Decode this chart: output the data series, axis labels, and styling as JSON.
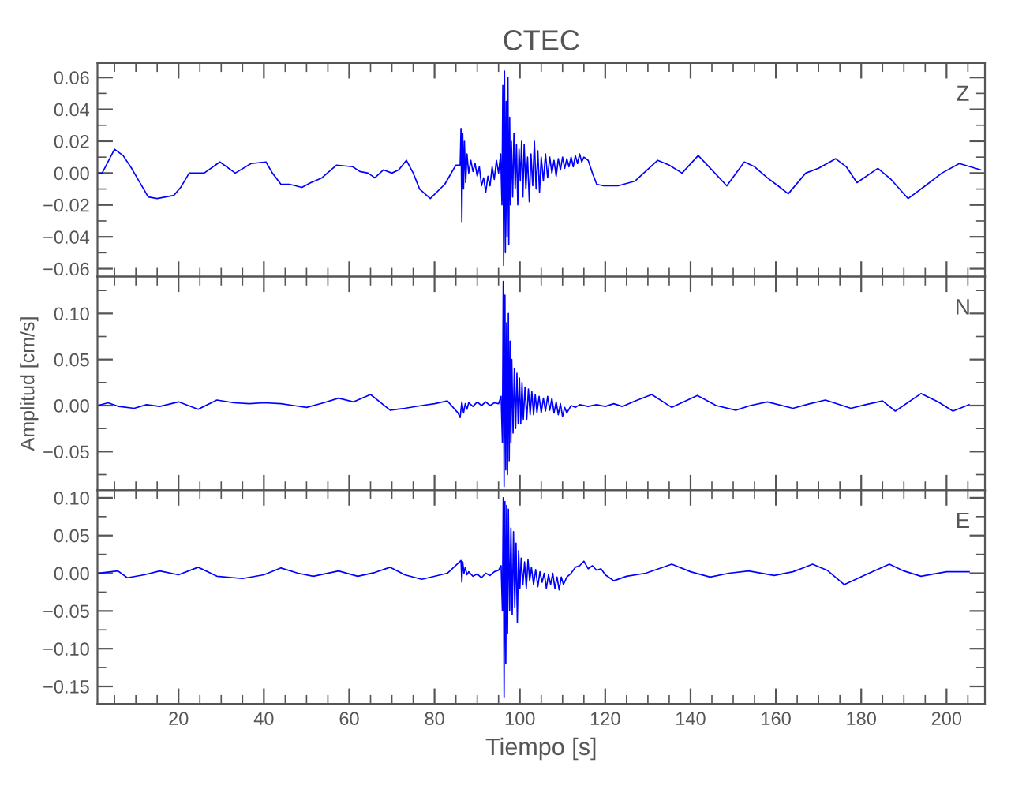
{
  "chart_data": [
    {
      "type": "line",
      "title": "CTEC",
      "annotations": [
        "Z"
      ],
      "tick_labels": "y",
      "xlim": [
        1,
        209
      ],
      "ylim": [
        -0.065,
        0.069
      ],
      "xticks": [
        20,
        40,
        60,
        80,
        100,
        120,
        140,
        160,
        180,
        200
      ],
      "yticks": [
        {
          "value": -0.06,
          "label": "−0.06"
        },
        {
          "value": -0.04,
          "label": "−0.04"
        },
        {
          "value": -0.02,
          "label": "−0.02"
        },
        {
          "value": 0,
          "label": "0.00"
        },
        {
          "value": 0.02,
          "label": "0.02"
        },
        {
          "value": 0.04,
          "label": "0.04"
        },
        {
          "value": 0.06,
          "label": "0.06"
        }
      ],
      "series": [
        {
          "color": "#0000ff",
          "x": [
            1,
            2.1,
            5,
            7,
            9,
            12.9,
            15,
            18.9,
            20.5,
            22.5,
            26,
            29.7,
            33.3,
            37,
            40.5,
            42,
            44,
            46,
            48.9,
            51,
            53.6,
            57,
            60.8,
            62.5,
            64.4,
            66,
            68,
            70,
            71.6,
            73.4,
            75,
            76.5,
            79,
            82.4,
            85,
            86.0,
            86.2,
            86.4,
            86.6,
            86.8,
            87.0,
            87.3,
            87.6,
            88.0,
            88.5,
            89.0,
            89.5,
            90.0,
            90.5,
            91.0,
            91.5,
            92.0,
            92.5,
            93.0,
            93.5,
            94.0,
            94.5,
            95.0,
            95.5,
            95.8,
            96.0,
            96.2,
            96.4,
            96.6,
            96.8,
            97.0,
            97.2,
            97.4,
            97.6,
            97.8,
            98.0,
            98.3,
            98.6,
            98.9,
            99.2,
            99.5,
            99.8,
            100.1,
            100.4,
            100.7,
            101.0,
            101.4,
            101.8,
            102.2,
            102.6,
            103.0,
            103.4,
            103.8,
            104.2,
            104.6,
            105.0,
            105.5,
            106.0,
            106.5,
            107.0,
            107.5,
            108.0,
            108.5,
            109,
            109.5,
            110,
            110.5,
            111,
            111.5,
            112,
            112.5,
            113,
            113.5,
            114,
            114.5,
            115,
            116,
            117,
            118,
            119.7,
            123,
            127,
            132.3,
            135,
            138,
            141.8,
            145,
            148.5,
            152.6,
            155,
            158,
            160.5,
            162.9,
            167,
            170,
            174,
            176.5,
            179,
            183.9,
            187,
            191,
            195,
            198.9,
            203,
            208
          ],
          "values": [
            0.0,
            0.0,
            0.015,
            0.011,
            0.003,
            -0.015,
            -0.016,
            -0.014,
            -0.009,
            0.0,
            0.0,
            0.007,
            0.0,
            0.006,
            0.007,
            0.0,
            -0.007,
            -0.007,
            -0.009,
            -0.006,
            -0.003,
            0.005,
            0.004,
            0.001,
            0.0,
            -0.003,
            0.002,
            0.0,
            0.002,
            0.008,
            0.0,
            -0.01,
            -0.016,
            -0.007,
            0.005,
            0.005,
            0.028,
            -0.031,
            0.025,
            -0.01,
            0.02,
            -0.006,
            0.012,
            0.0,
            0.008,
            0.001,
            0.006,
            -0.002,
            0.004,
            -0.008,
            -0.003,
            -0.012,
            -0.002,
            -0.008,
            0.004,
            -0.004,
            0.008,
            0.0,
            0.012,
            -0.02,
            0.055,
            -0.058,
            0.064,
            -0.05,
            0.045,
            -0.04,
            0.06,
            -0.045,
            0.035,
            -0.02,
            0.02,
            -0.015,
            0.025,
            -0.01,
            0.018,
            -0.02,
            0.015,
            -0.005,
            0.02,
            -0.015,
            0.018,
            -0.01,
            0.01,
            -0.018,
            0.012,
            -0.008,
            0.02,
            -0.01,
            0.014,
            -0.012,
            0.01,
            -0.005,
            0.012,
            -0.003,
            0.01,
            0.0,
            0.008,
            -0.002,
            0.009,
            0.002,
            0.01,
            0.003,
            0.009,
            0.004,
            0.01,
            0.004,
            0.011,
            0.006,
            0.012,
            0.007,
            0.01,
            0.008,
            0.0,
            -0.007,
            -0.008,
            -0.008,
            -0.005,
            0.008,
            0.005,
            0.0,
            0.011,
            0.002,
            -0.008,
            0.007,
            0.004,
            -0.003,
            -0.008,
            -0.013,
            0.0,
            0.003,
            0.009,
            0.004,
            -0.006,
            0.003,
            -0.004,
            -0.016,
            -0.008,
            0.0,
            0.006,
            0.002
          ]
        }
      ]
    },
    {
      "type": "line",
      "ylabel": "Amplitud [cm/s]",
      "annotations": [
        "N"
      ],
      "tick_labels": "y",
      "xlim": [
        1,
        209
      ],
      "ylim": [
        -0.092,
        0.14
      ],
      "xticks": [
        20,
        40,
        60,
        80,
        100,
        120,
        140,
        160,
        180,
        200
      ],
      "yticks": [
        {
          "value": -0.05,
          "label": "−0.05"
        },
        {
          "value": 0,
          "label": "0.00"
        },
        {
          "value": 0.05,
          "label": "0.05"
        },
        {
          "value": 0.1,
          "label": "0.10"
        }
      ],
      "series": [
        {
          "color": "#0000ff",
          "x": [
            1,
            3.5,
            6,
            9.6,
            12.5,
            15.6,
            20,
            24.6,
            29,
            33,
            36.6,
            40,
            44,
            47,
            50,
            54,
            57.5,
            61,
            65,
            69.6,
            73,
            77,
            80,
            83,
            85.5,
            86,
            86.4,
            86.8,
            87.2,
            87.6,
            88,
            89,
            90,
            91,
            92,
            93,
            94,
            95,
            95.6,
            95.9,
            96.1,
            96.3,
            96.5,
            96.7,
            96.9,
            97.1,
            97.3,
            97.5,
            97.7,
            97.9,
            98.1,
            98.4,
            98.7,
            99.0,
            99.3,
            99.6,
            99.9,
            100.2,
            100.5,
            100.8,
            101.2,
            101.6,
            102.0,
            102.4,
            102.8,
            103.2,
            103.6,
            104.0,
            104.5,
            105,
            105.5,
            106,
            106.5,
            107,
            107.5,
            108,
            108.5,
            109,
            109.5,
            110,
            110.5,
            111,
            112,
            113,
            114,
            116,
            118,
            120,
            122,
            124,
            127,
            130.9,
            135.6,
            141.6,
            146,
            150.6,
            154,
            158,
            164,
            168,
            171.6,
            177.6,
            181,
            185,
            188,
            194,
            198,
            201.5,
            205.3
          ],
          "values": [
            0.0,
            0.003,
            -0.001,
            -0.003,
            0.001,
            -0.001,
            0.004,
            -0.004,
            0.006,
            0.003,
            0.002,
            0.003,
            0.002,
            0.0,
            -0.002,
            0.003,
            0.008,
            0.004,
            0.012,
            -0.005,
            -0.003,
            0.0,
            0.002,
            0.005,
            -0.008,
            -0.013,
            0.004,
            -0.008,
            0.002,
            -0.004,
            0.003,
            -0.001,
            0.004,
            0.0,
            0.004,
            0.0,
            0.003,
            0.002,
            0.01,
            -0.04,
            0.135,
            -0.088,
            0.12,
            -0.07,
            0.09,
            -0.075,
            0.1,
            -0.06,
            0.07,
            -0.04,
            0.05,
            -0.03,
            0.04,
            -0.025,
            0.035,
            -0.02,
            0.03,
            -0.02,
            0.025,
            -0.015,
            0.02,
            -0.015,
            0.018,
            -0.01,
            0.015,
            -0.01,
            0.012,
            -0.008,
            0.01,
            -0.008,
            0.008,
            -0.006,
            0.01,
            -0.005,
            0.008,
            -0.008,
            0.004,
            -0.01,
            0.002,
            -0.012,
            -0.002,
            -0.008,
            0.0,
            -0.002,
            0.001,
            -0.001,
            0.001,
            -0.001,
            0.002,
            -0.001,
            0.005,
            0.012,
            -0.002,
            0.011,
            0.0,
            -0.005,
            0.0,
            0.004,
            -0.003,
            0.002,
            0.006,
            -0.003,
            0.001,
            0.005,
            -0.006,
            0.013,
            0.004,
            -0.006,
            0.001
          ]
        }
      ]
    },
    {
      "type": "line",
      "xlabel": "Tiempo [s]",
      "annotations": [
        "E"
      ],
      "xlim": [
        1,
        209
      ],
      "ylim": [
        -0.173,
        0.11
      ],
      "xticks": [
        20,
        40,
        60,
        80,
        100,
        120,
        140,
        160,
        180,
        200
      ],
      "yticks": [
        {
          "value": -0.15,
          "label": "−0.15"
        },
        {
          "value": -0.1,
          "label": "−0.10"
        },
        {
          "value": -0.05,
          "label": "−0.05"
        },
        {
          "value": 0,
          "label": "0.00"
        },
        {
          "value": 0.05,
          "label": "0.05"
        },
        {
          "value": 0.1,
          "label": "0.10"
        }
      ],
      "series": [
        {
          "color": "#0000ff",
          "x": [
            1,
            5.8,
            8,
            12,
            15.6,
            20,
            24.6,
            29,
            35,
            40,
            44,
            48,
            51.6,
            57.5,
            62,
            66,
            69.6,
            73,
            77,
            83,
            86.2,
            86.4,
            86.6,
            86.9,
            87.2,
            87.6,
            88,
            89,
            90,
            91,
            92,
            93,
            94,
            95,
            95.6,
            95.9,
            96.1,
            96.3,
            96.5,
            96.7,
            96.9,
            97.1,
            97.3,
            97.6,
            97.9,
            98.2,
            98.5,
            98.8,
            99.1,
            99.4,
            99.7,
            100,
            100.3,
            100.7,
            101.1,
            101.5,
            101.9,
            102.3,
            102.7,
            103.2,
            103.7,
            104.2,
            104.7,
            105.2,
            105.7,
            106.2,
            106.7,
            107.2,
            107.7,
            108.2,
            108.7,
            109.2,
            109.7,
            110.2,
            111,
            112,
            113,
            114,
            115,
            116,
            117,
            118,
            119,
            120,
            121,
            122,
            125,
            129.5,
            135.6,
            140,
            144.6,
            149,
            153.6,
            159.6,
            164,
            168.6,
            172,
            176,
            181,
            186.6,
            190,
            194,
            200,
            205.3
          ],
          "values": [
            0.0,
            0.003,
            -0.006,
            -0.002,
            0.003,
            -0.002,
            0.008,
            -0.004,
            -0.007,
            -0.002,
            0.007,
            0.0,
            -0.004,
            0.003,
            -0.004,
            0.001,
            0.008,
            -0.002,
            -0.008,
            0.0,
            0.017,
            -0.012,
            0.015,
            0.0,
            0.008,
            -0.002,
            0.002,
            -0.004,
            -0.001,
            -0.006,
            0.0,
            -0.003,
            0.002,
            0.004,
            0.01,
            -0.05,
            0.1,
            -0.165,
            0.095,
            -0.12,
            0.09,
            -0.08,
            0.085,
            -0.05,
            0.06,
            -0.055,
            0.055,
            -0.045,
            0.04,
            -0.065,
            0.03,
            -0.02,
            0.02,
            -0.015,
            0.015,
            -0.02,
            0.018,
            -0.01,
            0.008,
            -0.015,
            0.005,
            -0.018,
            0.002,
            -0.012,
            0.0,
            -0.02,
            -0.002,
            -0.015,
            0.0,
            -0.02,
            -0.005,
            -0.022,
            -0.005,
            -0.015,
            -0.005,
            0.0,
            0.008,
            0.01,
            0.016,
            0.006,
            0.01,
            0.004,
            0.006,
            -0.002,
            -0.006,
            -0.01,
            -0.004,
            0.0,
            0.012,
            0.002,
            -0.005,
            0.0,
            0.003,
            -0.003,
            0.002,
            0.012,
            0.004,
            -0.015,
            -0.002,
            0.012,
            0.003,
            -0.004,
            0.002,
            0.002
          ]
        }
      ]
    }
  ]
}
